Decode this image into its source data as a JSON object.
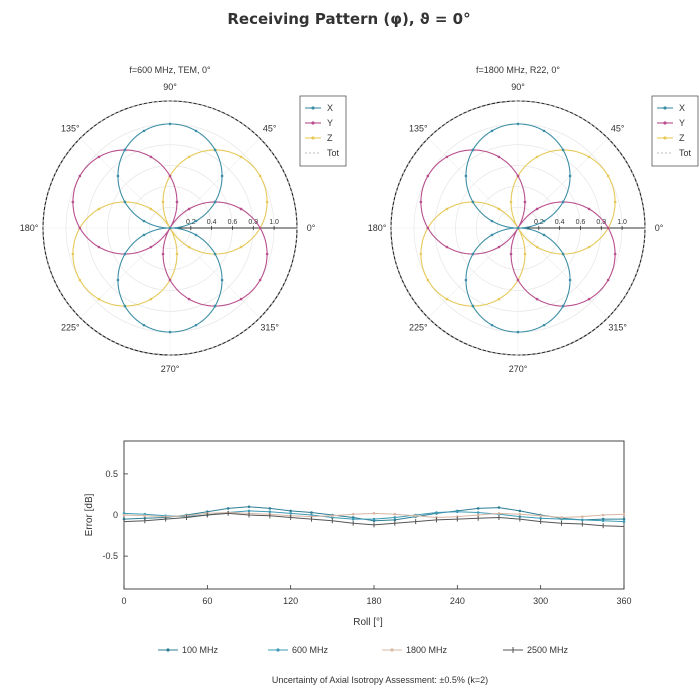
{
  "figure": {
    "title": "Receiving Pattern (φ), ϑ = 0°",
    "footnote": "Uncertainty of Axial Isotropy Assessment: ±0.5% (k=2)"
  },
  "colors": {
    "X": "#3d8fa6",
    "Y": "#b84f8d",
    "Z": "#e6c95a",
    "Tot": "#bbbbbb",
    "100MHz": "#2e7f95",
    "600MHz": "#3e9bb6",
    "1800MHz": "#d8b7a4",
    "2500MHz": "#555555"
  },
  "chart_data": [
    {
      "type": "polar",
      "title": "f=600 MHz, TEM, 0°",
      "angle_labels": [
        "0°",
        "45°",
        "90°",
        "135°",
        "180°",
        "225°",
        "270°",
        "315°"
      ],
      "radial_ticks": [
        "0.2",
        "0.4",
        "0.6",
        "0.8",
        "1.0"
      ],
      "rlim": [
        0,
        1.0
      ],
      "legend": [
        "X",
        "Y",
        "Z",
        "Tot"
      ],
      "legend_position": "top-right",
      "series": [
        {
          "name": "X",
          "pattern": "|cos(φ - 90°)|, peaks at 90° and 270°",
          "max": 1.0
        },
        {
          "name": "Y",
          "pattern": "|cos(φ - 150°)|, peaks at 150° and 330°",
          "max": 1.0
        },
        {
          "name": "Z",
          "pattern": "|cos(φ - 30°)|, peaks at 30° and 210°",
          "max": 1.0
        },
        {
          "name": "Tot",
          "pattern": "constant",
          "max": 1.22
        }
      ]
    },
    {
      "type": "polar",
      "title": "f=1800 MHz, R22, 0°",
      "angle_labels": [
        "0°",
        "45°",
        "90°",
        "135°",
        "180°",
        "225°",
        "270°",
        "315°"
      ],
      "radial_ticks": [
        "0.2",
        "0.4",
        "0.6",
        "0.8",
        "1.0"
      ],
      "rlim": [
        0,
        1.0
      ],
      "legend": [
        "X",
        "Y",
        "Z",
        "Tot"
      ],
      "legend_position": "top-right",
      "series": [
        {
          "name": "X",
          "pattern": "|cos(φ - 90°)|, peaks at 90° and 270°",
          "max": 1.0
        },
        {
          "name": "Y",
          "pattern": "|cos(φ - 150°)|, peaks at 150° and 330°",
          "max": 1.0
        },
        {
          "name": "Z",
          "pattern": "|cos(φ - 30°)|, peaks at 30° and 210°",
          "max": 1.0
        },
        {
          "name": "Tot",
          "pattern": "constant",
          "max": 1.22
        }
      ]
    },
    {
      "type": "line",
      "xlabel": "Roll [°]",
      "ylabel": "Error [dB]",
      "xlim": [
        0,
        360
      ],
      "ylim": [
        -0.9,
        0.9
      ],
      "xticks": [
        "0",
        "60",
        "120",
        "180",
        "240",
        "300",
        "360"
      ],
      "yticks": [
        "0.5",
        "0",
        "-0.5"
      ],
      "legend_position": "bottom",
      "x": [
        0,
        15,
        30,
        45,
        60,
        75,
        90,
        105,
        120,
        135,
        150,
        165,
        180,
        195,
        210,
        225,
        240,
        255,
        270,
        285,
        300,
        315,
        330,
        345,
        360
      ],
      "series": [
        {
          "name": "100 MHz",
          "values": [
            -0.05,
            -0.04,
            -0.03,
            0.0,
            0.04,
            0.08,
            0.1,
            0.08,
            0.05,
            0.03,
            0.0,
            -0.03,
            -0.07,
            -0.06,
            -0.02,
            0.02,
            0.05,
            0.08,
            0.09,
            0.05,
            0.0,
            -0.04,
            -0.06,
            -0.05,
            -0.05
          ]
        },
        {
          "name": "600 MHz",
          "values": [
            0.02,
            0.01,
            -0.01,
            -0.02,
            0.0,
            0.03,
            0.05,
            0.04,
            0.02,
            0.0,
            -0.03,
            -0.05,
            -0.05,
            -0.03,
            0.0,
            0.03,
            0.04,
            0.03,
            0.01,
            -0.02,
            -0.04,
            -0.05,
            -0.06,
            -0.07,
            -0.08
          ]
        },
        {
          "name": "1800 MHz",
          "values": [
            0.0,
            -0.01,
            -0.02,
            -0.01,
            0.02,
            0.03,
            0.02,
            0.01,
            -0.01,
            -0.02,
            -0.01,
            0.01,
            0.02,
            0.01,
            -0.01,
            -0.03,
            -0.02,
            0.0,
            0.02,
            0.01,
            -0.01,
            -0.03,
            -0.02,
            0.0,
            0.01
          ]
        },
        {
          "name": "2500 MHz",
          "values": [
            -0.08,
            -0.07,
            -0.05,
            -0.03,
            0.0,
            0.02,
            0.0,
            -0.01,
            -0.03,
            -0.05,
            -0.07,
            -0.1,
            -0.12,
            -0.1,
            -0.08,
            -0.06,
            -0.05,
            -0.04,
            -0.03,
            -0.05,
            -0.08,
            -0.1,
            -0.11,
            -0.13,
            -0.14
          ]
        }
      ]
    }
  ]
}
